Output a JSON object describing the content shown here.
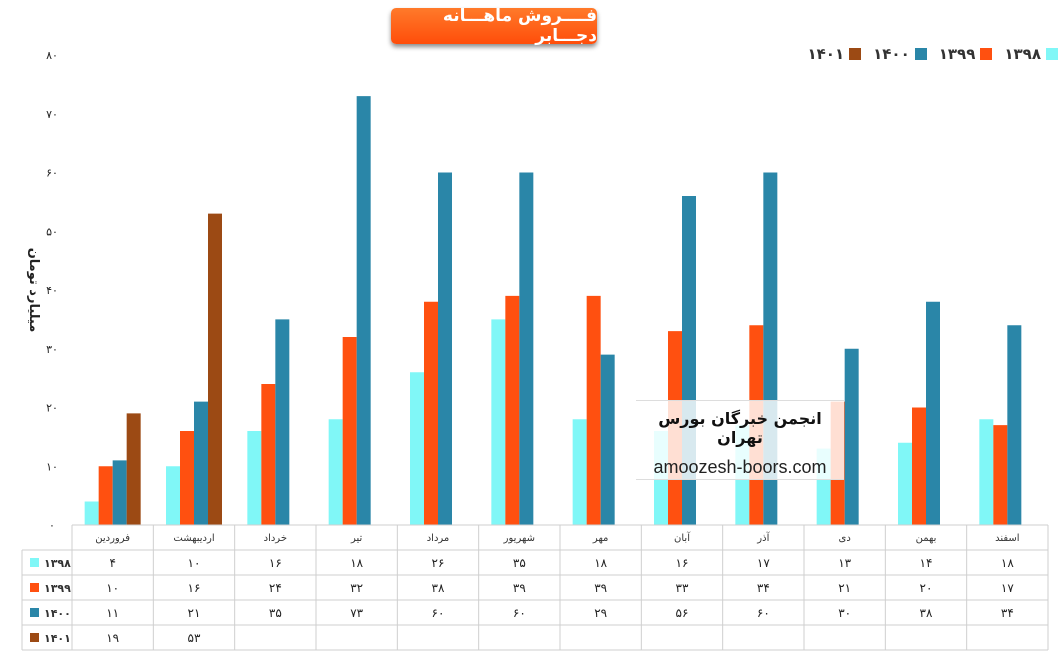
{
  "chart_data": {
    "type": "bar",
    "title": "فــــروش ماهـــانه دجـــابر",
    "ylabel": "میلیارد تومان",
    "xlabel": "",
    "ylim": [
      0,
      80
    ],
    "yticks": [
      "۰",
      "۱۰",
      "۲۰",
      "۳۰",
      "۴۰",
      "۵۰",
      "۶۰",
      "۷۰",
      "۸۰"
    ],
    "legend_position": "top-right",
    "categories": [
      "فروردین",
      "اردیبهشت",
      "خرداد",
      "تیر",
      "مرداد",
      "شهریور",
      "مهر",
      "آبان",
      "آذر",
      "دی",
      "بهمن",
      "اسفند"
    ],
    "series": [
      {
        "name": "۱۳۹۸",
        "color": "#80f7f7",
        "values": [
          4,
          10,
          16,
          18,
          26,
          35,
          18,
          16,
          17,
          13,
          14,
          18
        ],
        "labels": [
          "۴",
          "۱۰",
          "۱۶",
          "۱۸",
          "۲۶",
          "۳۵",
          "۱۸",
          "۱۶",
          "۱۷",
          "۱۳",
          "۱۴",
          "۱۸"
        ]
      },
      {
        "name": "۱۳۹۹",
        "color": "#ff5010",
        "values": [
          10,
          16,
          24,
          32,
          38,
          39,
          39,
          33,
          34,
          21,
          20,
          17
        ],
        "labels": [
          "۱۰",
          "۱۶",
          "۲۴",
          "۳۲",
          "۳۸",
          "۳۹",
          "۳۹",
          "۳۳",
          "۳۴",
          "۲۱",
          "۲۰",
          "۱۷"
        ]
      },
      {
        "name": "۱۴۰۰",
        "color": "#2a86a8",
        "values": [
          11,
          21,
          35,
          73,
          60,
          60,
          29,
          56,
          60,
          30,
          38,
          34
        ],
        "labels": [
          "۱۱",
          "۲۱",
          "۳۵",
          "۷۳",
          "۶۰",
          "۶۰",
          "۲۹",
          "۵۶",
          "۶۰",
          "۳۰",
          "۳۸",
          "۳۴"
        ]
      },
      {
        "name": "۱۴۰۱",
        "color": "#9c4a14",
        "values": [
          19,
          53,
          null,
          null,
          null,
          null,
          null,
          null,
          null,
          null,
          null,
          null
        ],
        "labels": [
          "۱۹",
          "۵۳",
          "",
          "",
          "",
          "",
          "",
          "",
          "",
          "",
          "",
          ""
        ]
      }
    ]
  },
  "legend_order": [
    3,
    2,
    1,
    0
  ],
  "watermark": {
    "title": "انجمن خبرگان بورس تهران",
    "url": "amoozesh-boors.com"
  }
}
